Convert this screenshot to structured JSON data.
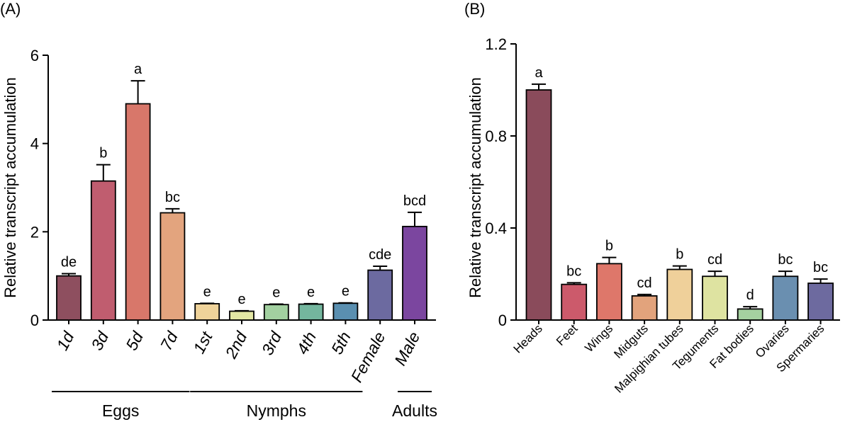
{
  "chart_data": [
    {
      "type": "bar",
      "panel_label": "(A)",
      "ylabel": "Relative transcript accumulation",
      "ylim": [
        0,
        6
      ],
      "yticks": [
        "0",
        "2",
        "4",
        "6"
      ],
      "categories": [
        "1d",
        "3d",
        "5d",
        "7d",
        "1st",
        "2nd",
        "3rd",
        "4th",
        "5th",
        "Female",
        "Male"
      ],
      "values": [
        1.0,
        3.15,
        4.9,
        2.43,
        0.37,
        0.2,
        0.35,
        0.36,
        0.38,
        1.13,
        2.12
      ],
      "errors": [
        0.05,
        0.37,
        0.52,
        0.09,
        0.01,
        0.01,
        0.01,
        0.01,
        0.01,
        0.09,
        0.32
      ],
      "significance": [
        "de",
        "b",
        "a",
        "bc",
        "e",
        "e",
        "e",
        "e",
        "e",
        "cde",
        "bcd"
      ],
      "colors": [
        "#8e4f5f",
        "#c05d6f",
        "#d8776a",
        "#e3a47e",
        "#efd39a",
        "#e3e7a4",
        "#a2d0a0",
        "#74b69e",
        "#5a8fb0",
        "#6c6aa0",
        "#7b469f"
      ],
      "groups": [
        {
          "label": "Eggs",
          "from": 0,
          "to": 3
        },
        {
          "label": "Nymphs",
          "from": 4,
          "to": 8
        },
        {
          "label": "Adults",
          "from": 10,
          "to": 10
        }
      ]
    },
    {
      "type": "bar",
      "panel_label": "(B)",
      "ylabel": "Relative transcript accumulation",
      "ylim": [
        0,
        1.2
      ],
      "yticks": [
        "0",
        "0.4",
        "0.8",
        "1.2"
      ],
      "categories": [
        "Heads",
        "Feet",
        "Wings",
        "Midguts",
        "Malpighian tubes",
        "Teguments",
        "Fat bodies",
        "Ovaries",
        "Spermaries"
      ],
      "values": [
        1.0,
        0.155,
        0.245,
        0.105,
        0.22,
        0.19,
        0.048,
        0.19,
        0.16
      ],
      "errors": [
        0.025,
        0.007,
        0.027,
        0.006,
        0.015,
        0.022,
        0.01,
        0.022,
        0.018
      ],
      "significance": [
        "a",
        "bc",
        "b",
        "cd",
        "b",
        "cd",
        "d",
        "bc",
        "bc"
      ],
      "colors": [
        "#8a4b5b",
        "#cc5a6b",
        "#de776a",
        "#e2a37c",
        "#efd09a",
        "#dee3a1",
        "#a5d1a0",
        "#6a8fb0",
        "#6d6a9f"
      ]
    }
  ]
}
